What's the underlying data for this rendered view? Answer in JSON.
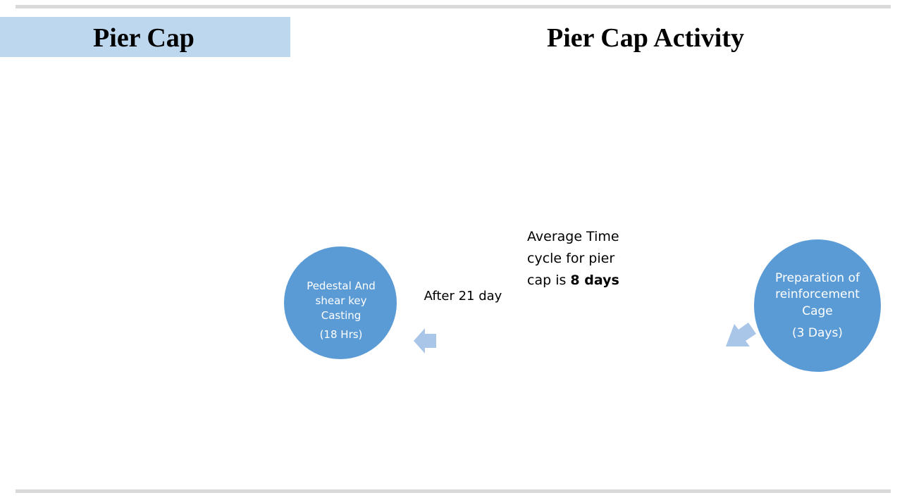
{
  "header": {
    "section_title": "Pier Cap",
    "title": "Pier Cap Activity"
  },
  "nodes": [
    {
      "lines": [
        "Pedestal And",
        "shear key",
        "Casting"
      ],
      "duration": "(18 Hrs)"
    },
    {
      "lines": [
        "Preparation of",
        "reinforcement",
        "Cage"
      ],
      "duration": "(3 Days)"
    }
  ],
  "labels": {
    "after": "After 21 day",
    "note_lines": [
      "Average Time",
      "cycle for pier"
    ],
    "note_prefix": "cap is",
    "note_bold": "8 days"
  }
}
